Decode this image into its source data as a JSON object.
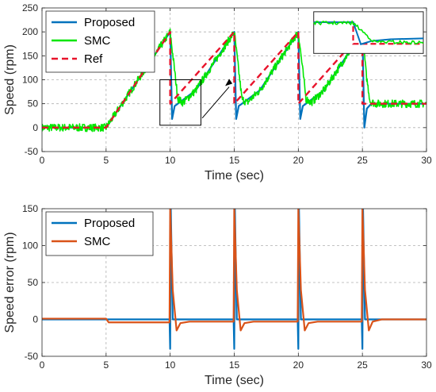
{
  "chart_data": [
    {
      "type": "line",
      "xlabel": "Time (sec)",
      "ylabel": "Speed (rpm)",
      "xlim": [
        0,
        30
      ],
      "ylim": [
        -50,
        250
      ],
      "xticks": [
        0,
        5,
        10,
        15,
        20,
        25,
        30
      ],
      "yticks": [
        -50,
        0,
        50,
        100,
        150,
        200,
        250
      ],
      "grid": true,
      "legend_position": "top-left",
      "series": [
        {
          "name": "Proposed",
          "color": "#0072BD",
          "style": "solid",
          "x": [
            0,
            5,
            10,
            10.15,
            10.35,
            10.7,
            12,
            15,
            15.15,
            15.35,
            15.7,
            17,
            20,
            20.15,
            20.35,
            20.7,
            22,
            25,
            25.15,
            25.35,
            25.7,
            30
          ],
          "y": [
            0,
            0,
            200,
            18,
            45,
            52,
            78,
            200,
            18,
            45,
            52,
            78,
            200,
            18,
            45,
            52,
            78,
            200,
            0,
            40,
            50,
            50
          ]
        },
        {
          "name": "SMC",
          "color": "#00E600",
          "style": "solid-noisy",
          "x": [
            0,
            5,
            10,
            10.3,
            10.6,
            11,
            12,
            15,
            15.3,
            15.6,
            16,
            17,
            20,
            20.3,
            20.6,
            21,
            22,
            25,
            25.3,
            25.6,
            26,
            30
          ],
          "y": [
            0,
            0,
            200,
            130,
            60,
            52,
            78,
            200,
            130,
            60,
            52,
            78,
            200,
            130,
            60,
            52,
            78,
            200,
            110,
            55,
            50,
            50
          ]
        },
        {
          "name": "Ref",
          "color": "#E8132B",
          "style": "dashed",
          "x": [
            0,
            5,
            10,
            10,
            15,
            15,
            20,
            20,
            25,
            25,
            30
          ],
          "y": [
            0,
            0,
            200,
            50,
            200,
            50,
            200,
            50,
            200,
            50,
            50
          ]
        }
      ]
    },
    {
      "type": "line",
      "xlabel": "Time (sec)",
      "ylabel": "Speed error (rpm)",
      "xlim": [
        0,
        30
      ],
      "ylim": [
        -50,
        150
      ],
      "xticks": [
        0,
        5,
        10,
        15,
        20,
        25,
        30
      ],
      "yticks": [
        -50,
        0,
        50,
        100,
        150
      ],
      "grid": true,
      "legend_position": "top-left",
      "series": [
        {
          "name": "Proposed",
          "color": "#0072BD",
          "x": [
            0,
            9.95,
            10,
            10.05,
            10.2,
            14.95,
            15,
            15.05,
            15.2,
            19.95,
            20,
            20.05,
            20.2,
            24.95,
            25,
            25.05,
            25.2,
            30
          ],
          "y": [
            0,
            0,
            -40,
            150,
            0,
            0,
            -40,
            150,
            0,
            0,
            -40,
            150,
            0,
            0,
            -40,
            150,
            0,
            0
          ]
        },
        {
          "name": "SMC",
          "color": "#D95319",
          "x": [
            0,
            5,
            5.2,
            9.95,
            10,
            10.2,
            10.5,
            10.8,
            11.5,
            14.95,
            15,
            15.2,
            15.5,
            15.8,
            16.5,
            19.95,
            20,
            20.2,
            20.5,
            20.8,
            21.5,
            24.95,
            25,
            25.2,
            25.5,
            25.8,
            26.5,
            30
          ],
          "y": [
            1,
            1,
            -4,
            -4,
            150,
            40,
            -15,
            -5,
            -3,
            -3,
            150,
            40,
            -15,
            -5,
            -3,
            -3,
            150,
            40,
            -15,
            -5,
            -3,
            -3,
            150,
            40,
            -15,
            -3,
            0,
            0
          ]
        }
      ]
    }
  ]
}
